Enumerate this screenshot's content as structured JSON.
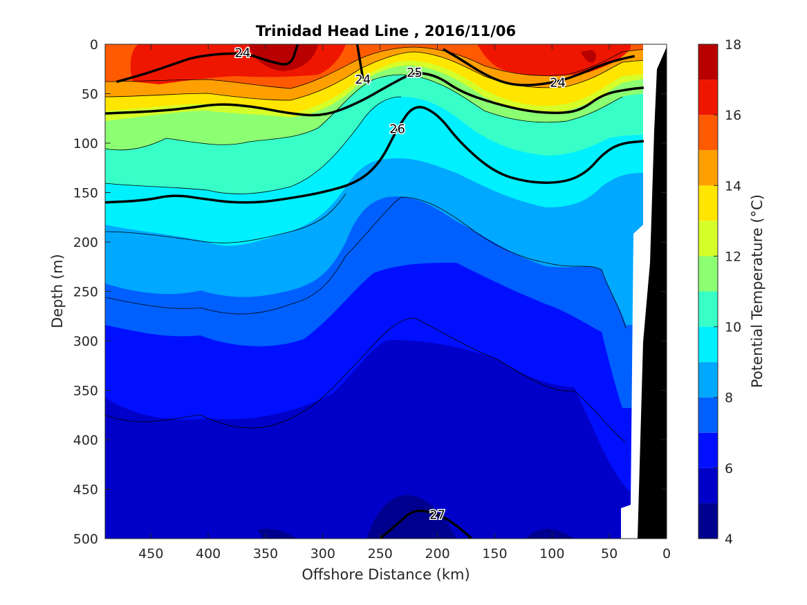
{
  "chart_data": {
    "type": "contour",
    "title": "Trinidad Head Line , 2016/11/06",
    "xlabel": "Offshore Distance (km)",
    "ylabel": "Depth (m)",
    "colorbar_label": "Potential Temperature (°C)",
    "x_reversed": true,
    "y_reversed": true,
    "xlim": [
      0,
      490
    ],
    "ylim": [
      0,
      500
    ],
    "x_ticks": [
      450,
      400,
      350,
      300,
      250,
      200,
      150,
      100,
      50,
      0
    ],
    "y_ticks": [
      0,
      50,
      100,
      150,
      200,
      250,
      300,
      350,
      400,
      450,
      500
    ],
    "colorbar_ticks": [
      4,
      6,
      8,
      10,
      12,
      14,
      16,
      18
    ],
    "colorbar_levels": [
      4,
      5,
      6,
      7,
      8,
      9,
      10,
      11,
      12,
      13,
      14,
      15,
      16,
      17,
      18
    ],
    "colorbar_colors": [
      "#00008f",
      "#0000c8",
      "#0010ff",
      "#0060ff",
      "#00a8ff",
      "#00f0ff",
      "#38ffc8",
      "#8cff73",
      "#d6ff29",
      "#ffe500",
      "#ffa000",
      "#ff5a00",
      "#ef1600",
      "#b80000"
    ],
    "density_contours": [
      {
        "label": "24",
        "x": [
          480,
          455,
          430,
          410,
          370,
          345,
          328,
          322
        ],
        "y": [
          38,
          30,
          20,
          12,
          8,
          18,
          22,
          0
        ]
      },
      {
        "label": "24",
        "x": [
          270,
          265
        ],
        "y": [
          0,
          35
        ]
      },
      {
        "label": "24",
        "x": [
          195,
          180,
          160,
          140,
          120,
          95,
          75,
          55,
          40,
          28
        ],
        "y": [
          5,
          15,
          30,
          40,
          42,
          38,
          30,
          20,
          15,
          12
        ]
      },
      {
        "label": "25",
        "x": [
          490,
          450,
          420,
          390,
          360,
          330,
          300,
          270,
          240,
          220,
          200,
          180,
          150,
          120,
          95,
          75,
          55,
          30,
          20
        ],
        "y": [
          70,
          68,
          65,
          60,
          63,
          70,
          73,
          60,
          40,
          28,
          32,
          48,
          60,
          68,
          70,
          67,
          50,
          45,
          44
        ]
      },
      {
        "label": "26",
        "x": [
          490,
          455,
          430,
          400,
          380,
          355,
          330,
          300,
          270,
          250,
          235,
          220,
          200,
          180,
          150,
          120,
          90,
          70,
          55,
          40,
          20
        ],
        "y": [
          160,
          158,
          152,
          157,
          160,
          160,
          156,
          150,
          140,
          120,
          85,
          60,
          70,
          100,
          130,
          140,
          140,
          130,
          110,
          100,
          98
        ]
      },
      {
        "label": "27",
        "x": [
          250,
          235,
          220,
          200,
          185,
          170
        ],
        "y": [
          500,
          485,
          470,
          475,
          485,
          500
        ]
      }
    ],
    "colorbar_label_sign": "°C",
    "land_mask_color": "#000000"
  }
}
